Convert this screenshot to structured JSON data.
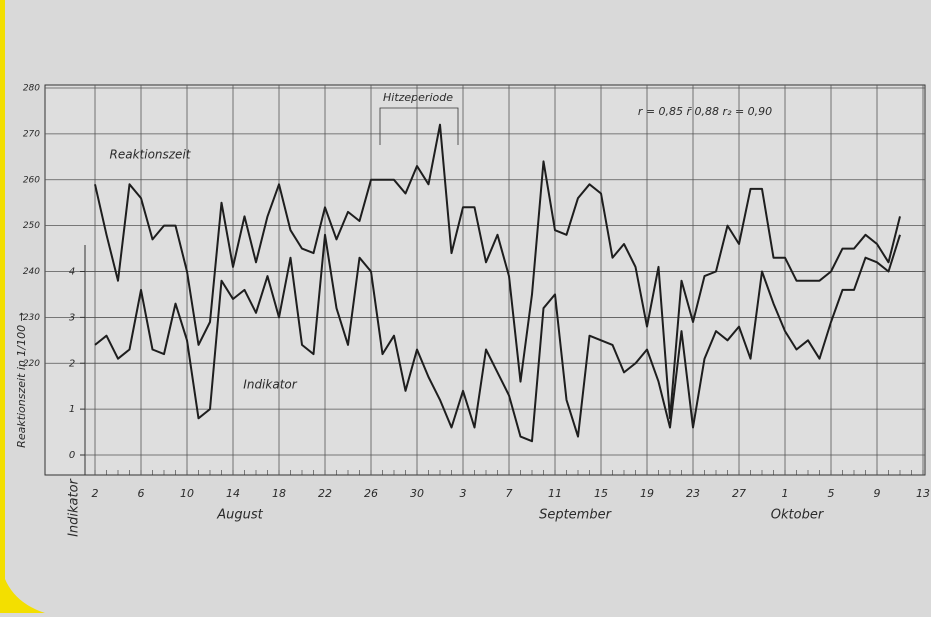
{
  "chart_data": {
    "type": "line",
    "annotations": [
      "Hitzeperiode",
      "r = 0,85   r̄ 0,88   r₂ = 0,90"
    ],
    "ylabel": "Reaktionszeit in 1/100 →",
    "y2label": "Indikator",
    "months": [
      "August",
      "September",
      "Oktober"
    ],
    "categories": [
      "2",
      null,
      null,
      null,
      "6",
      null,
      null,
      null,
      "10",
      null,
      null,
      null,
      "14",
      null,
      null,
      null,
      "18",
      null,
      null,
      null,
      "22",
      null,
      null,
      null,
      "26",
      null,
      null,
      null,
      "30",
      null,
      null,
      null,
      "3",
      null,
      null,
      null,
      "7",
      null,
      null,
      null,
      "11",
      null,
      null,
      null,
      "15",
      null,
      null,
      null,
      "19",
      null,
      null,
      null,
      "23",
      null,
      null,
      null,
      "27",
      null,
      null,
      null,
      "1",
      null,
      null,
      null,
      "5",
      null,
      null,
      null,
      "9",
      null,
      null,
      null,
      "13"
    ],
    "series": [
      {
        "name": "Reaktionszeit",
        "color": "#1e1e1e",
        "values": [
          259,
          248,
          238,
          259,
          256,
          247,
          250,
          250,
          240,
          224,
          229,
          255,
          241,
          252,
          242,
          252,
          259,
          249,
          245,
          244,
          254,
          247,
          253,
          251,
          260,
          260,
          260,
          257,
          263,
          259,
          272,
          244,
          254,
          254,
          242,
          248,
          239,
          216,
          235,
          264,
          249,
          248,
          256,
          259,
          257,
          243,
          246,
          241,
          228,
          241,
          208,
          238,
          229,
          239,
          240,
          250,
          246,
          258,
          258,
          243,
          243,
          238,
          238,
          238,
          240,
          245,
          245,
          248,
          246,
          242,
          252,
          null,
          null
        ]
      },
      {
        "name": "Indikator",
        "color": "#1e1e1e",
        "axis": "y2",
        "values": [
          2.4,
          2.6,
          2.1,
          2.3,
          3.6,
          2.3,
          2.2,
          3.3,
          2.5,
          0.8,
          1.0,
          3.8,
          3.4,
          3.6,
          3.1,
          3.9,
          3.0,
          4.3,
          2.4,
          2.2,
          4.8,
          3.2,
          2.4,
          4.3,
          4.0,
          2.2,
          2.6,
          1.4,
          2.3,
          1.7,
          1.2,
          0.6,
          1.4,
          0.6,
          2.3,
          1.8,
          1.3,
          0.4,
          0.3,
          3.2,
          3.5,
          1.2,
          0.4,
          2.6,
          2.5,
          2.4,
          1.8,
          2.0,
          2.3,
          1.6,
          0.6,
          2.7,
          0.6,
          2.1,
          2.7,
          2.5,
          2.8,
          2.1,
          4.0,
          3.3,
          2.7,
          2.3,
          2.5,
          2.1,
          2.9,
          3.6,
          3.6,
          4.3,
          4.2,
          4.0,
          4.8,
          null,
          null
        ]
      }
    ],
    "ylim": [
      200,
      280
    ],
    "yticks": [
      220,
      230,
      240,
      250,
      260,
      270,
      280
    ],
    "y2lim": [
      0,
      8
    ],
    "y2ticks": [
      0,
      1,
      2,
      3,
      4
    ],
    "grid": true
  }
}
